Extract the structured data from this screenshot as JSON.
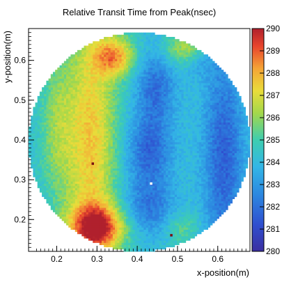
{
  "chart_data": {
    "type": "heatmap",
    "title": "Relative Transit Time from Peak(nsec)",
    "xlabel": "x-position(m)",
    "ylabel": "y-position(m)",
    "xlim": [
      0.13,
      0.68
    ],
    "ylim": [
      0.12,
      0.68
    ],
    "x_ticks": [
      "0.2",
      "0.3",
      "0.4",
      "0.5",
      "0.6"
    ],
    "y_ticks": [
      "0.2",
      "0.3",
      "0.4",
      "0.5",
      "0.6"
    ],
    "colorbar": {
      "range": [
        280,
        290
      ],
      "ticks": [
        "280",
        "281",
        "282",
        "283",
        "284",
        "285",
        "286",
        "287",
        "288",
        "289",
        "290"
      ]
    },
    "disk": {
      "center": [
        0.405,
        0.395
      ],
      "radius": 0.275,
      "baseline_value": 284.2
    },
    "features": [
      {
        "kind": "ridge",
        "x": 0.285,
        "y": 0.4,
        "sx": 0.045,
        "sy": 0.24,
        "curve": 0.0,
        "value": 3.4
      },
      {
        "kind": "blob",
        "x": 0.3,
        "y": 0.18,
        "sx": 0.05,
        "sy": 0.04,
        "value": 4.8
      },
      {
        "kind": "blob",
        "x": 0.345,
        "y": 0.61,
        "sx": 0.035,
        "sy": 0.035,
        "value": 3.6
      },
      {
        "kind": "blob",
        "x": 0.52,
        "y": 0.63,
        "sx": 0.04,
        "sy": 0.03,
        "value": 2.2
      },
      {
        "kind": "blob",
        "x": 0.2,
        "y": 0.43,
        "sx": 0.03,
        "sy": 0.13,
        "value": 1.6
      },
      {
        "kind": "blob",
        "x": 0.51,
        "y": 0.18,
        "sx": 0.03,
        "sy": 0.03,
        "value": 1.2
      },
      {
        "kind": "blob",
        "x": 0.445,
        "y": 0.53,
        "sx": 0.035,
        "sy": 0.07,
        "value": -2.2
      },
      {
        "kind": "blob",
        "x": 0.43,
        "y": 0.37,
        "sx": 0.04,
        "sy": 0.06,
        "value": -2.4
      },
      {
        "kind": "blob",
        "x": 0.43,
        "y": 0.23,
        "sx": 0.045,
        "sy": 0.05,
        "value": -2.0
      },
      {
        "kind": "blob",
        "x": 0.615,
        "y": 0.36,
        "sx": 0.035,
        "sy": 0.18,
        "value": -2.6
      },
      {
        "kind": "blob",
        "x": 0.56,
        "y": 0.6,
        "sx": 0.03,
        "sy": 0.03,
        "value": -1.0
      }
    ],
    "hot_pixels": [
      {
        "x": 0.29,
        "y": 0.34,
        "value": 290
      },
      {
        "x": 0.485,
        "y": 0.16,
        "value": 290
      },
      {
        "x": 0.435,
        "y": 0.29,
        "value": 280
      }
    ]
  }
}
